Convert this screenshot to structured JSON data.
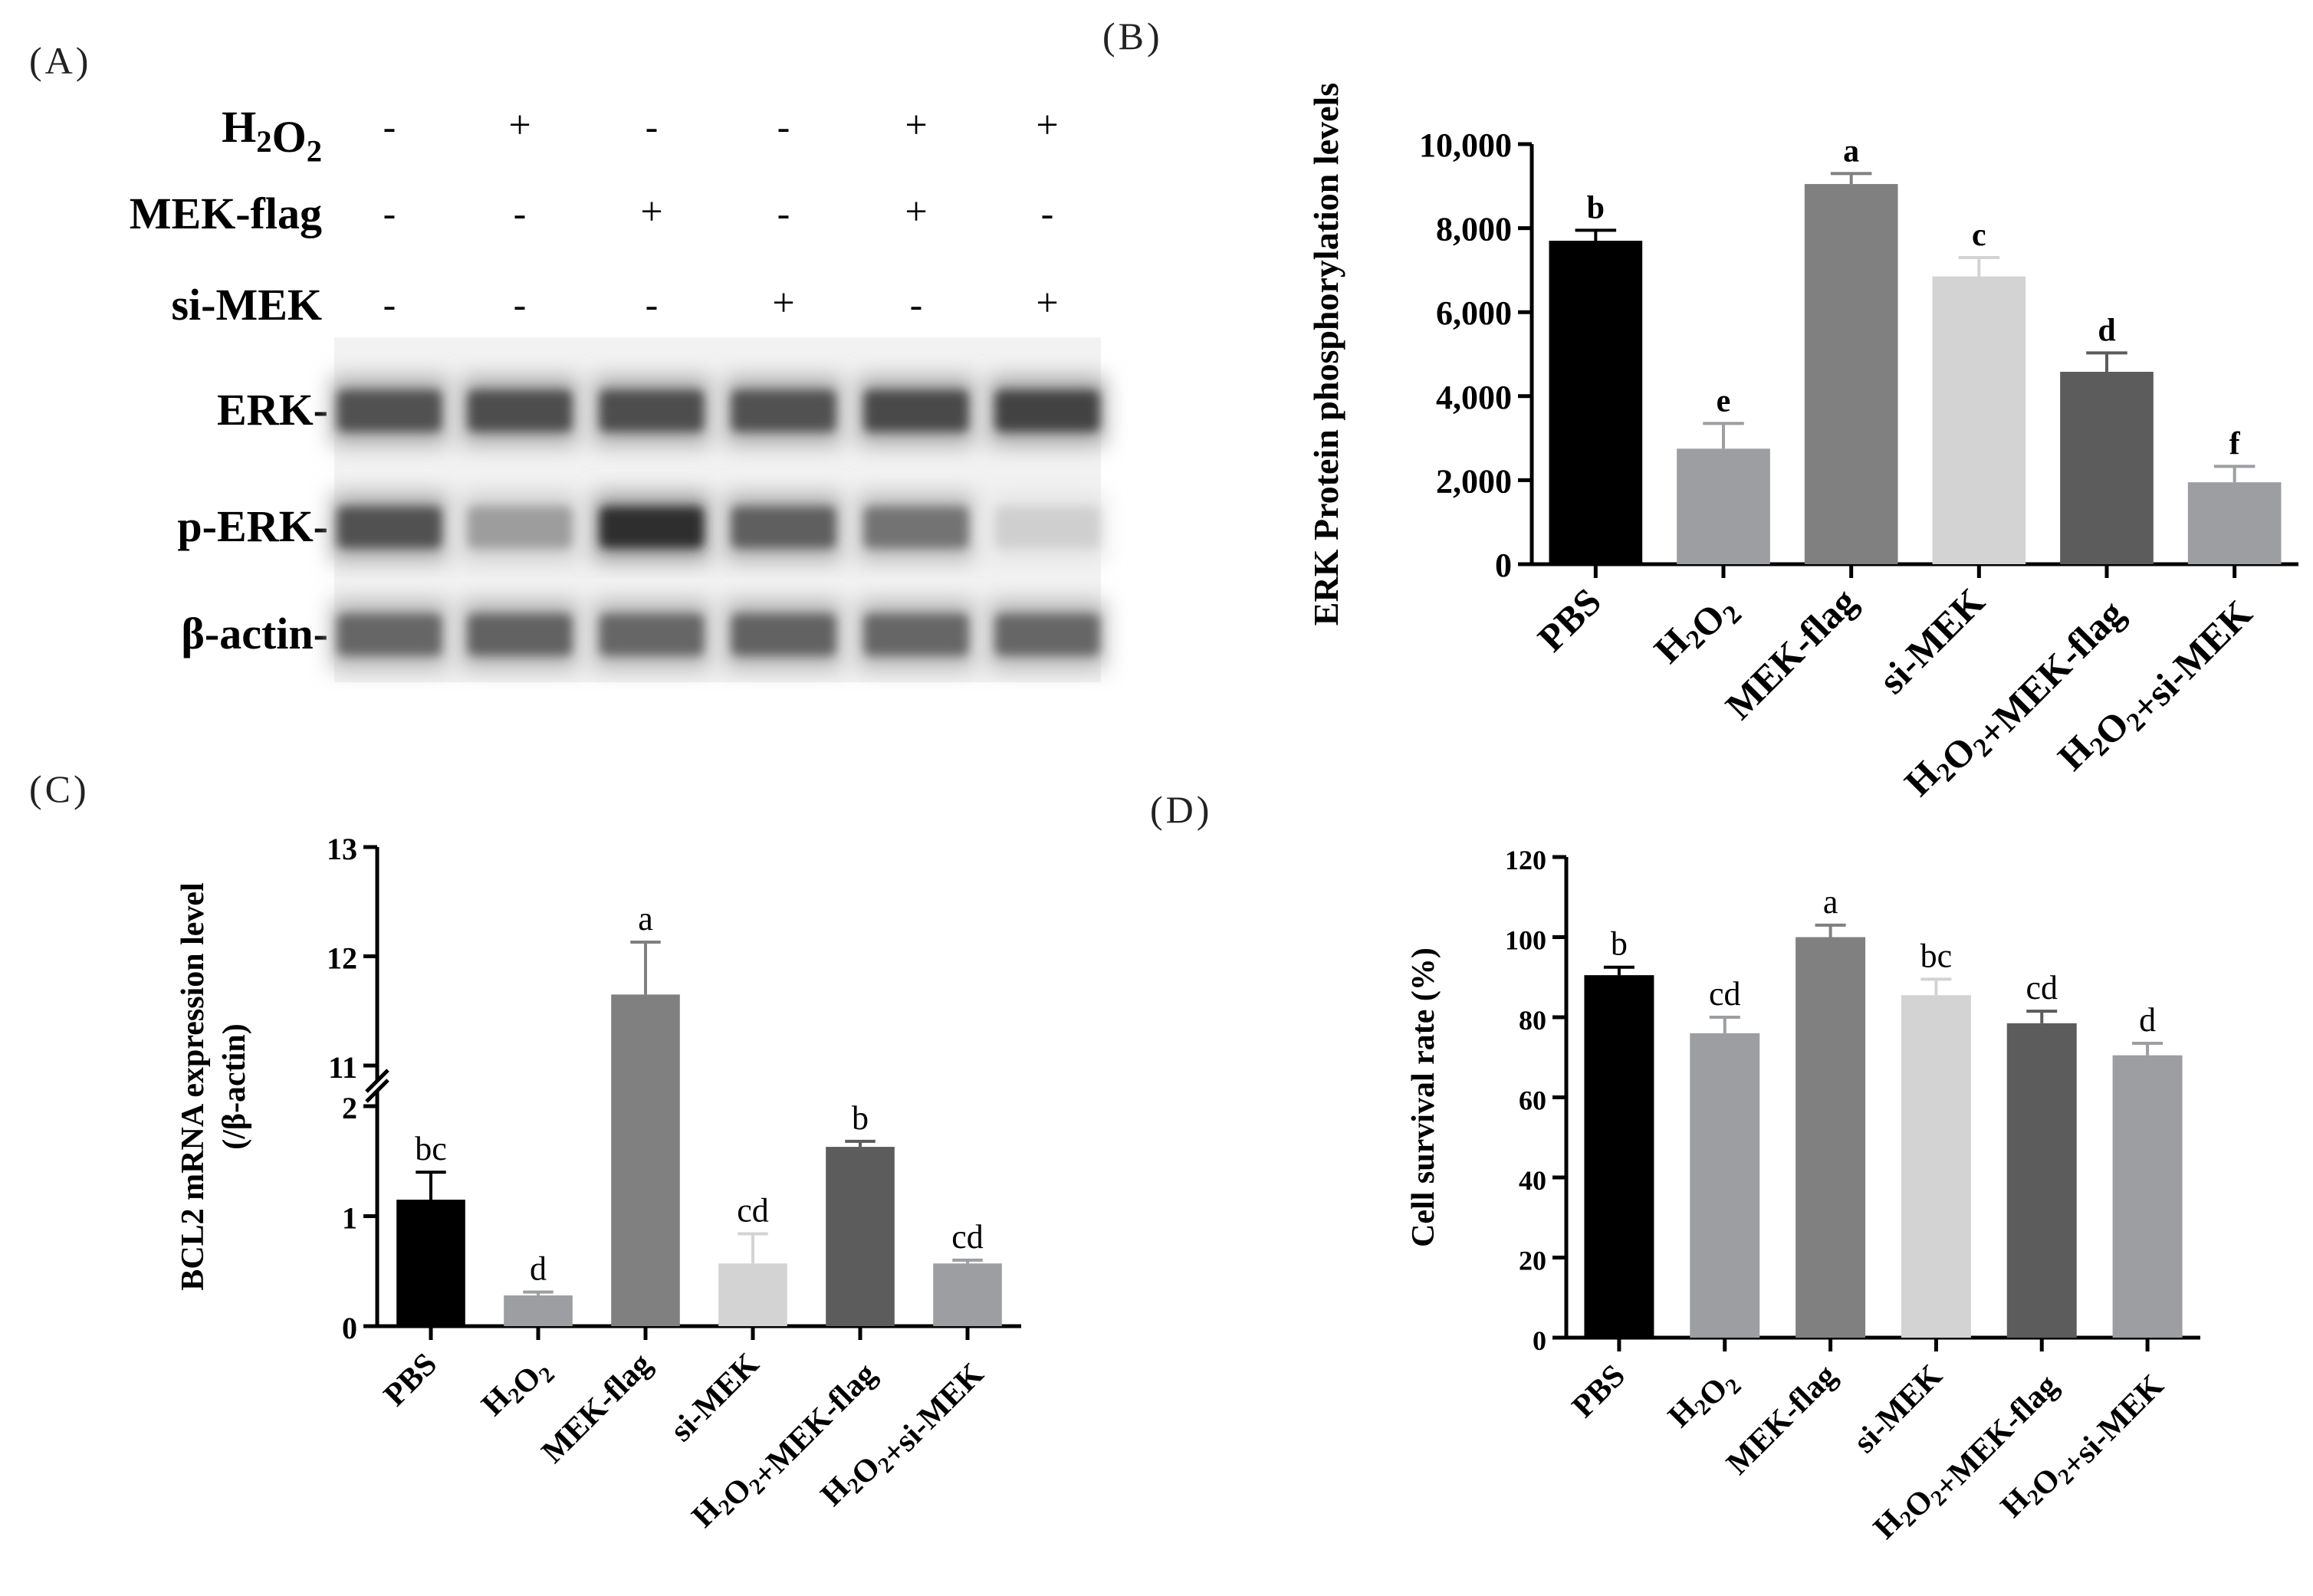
{
  "panel_labels": {
    "A": "(A)",
    "B": "(B)",
    "C": "(C)",
    "D": "(D)"
  },
  "western_blot": {
    "conditions": [
      {
        "name": "H2O2",
        "signs": [
          "-",
          "+",
          "-",
          "-",
          "+",
          "+"
        ]
      },
      {
        "name": "MEK-flag",
        "signs": [
          "-",
          "-",
          "+",
          "-",
          "+",
          "-"
        ]
      },
      {
        "name": "si-MEK",
        "signs": [
          "-",
          "-",
          "-",
          "+",
          "-",
          "+"
        ]
      }
    ],
    "bands": [
      {
        "name": "ERK-",
        "intensity": [
          0.78,
          0.8,
          0.8,
          0.78,
          0.82,
          0.85
        ]
      },
      {
        "name": "p-ERK-",
        "intensity": [
          0.78,
          0.42,
          0.95,
          0.72,
          0.62,
          0.18
        ]
      },
      {
        "name": "β-actin-",
        "intensity": [
          0.68,
          0.7,
          0.68,
          0.7,
          0.68,
          0.68
        ]
      }
    ]
  },
  "chart_data": [
    {
      "id": "B",
      "type": "bar",
      "title": "",
      "categories": [
        "PBS",
        "H2O2",
        "MEK-flag",
        "si-MEK",
        "H2O2+MEK-flag",
        "H2O2+si-MEK"
      ],
      "values": [
        7700,
        2750,
        9050,
        6850,
        4580,
        1950
      ],
      "errors": [
        250,
        600,
        250,
        450,
        450,
        380
      ],
      "letters": [
        "b",
        "e",
        "a",
        "c",
        "d",
        "f"
      ],
      "colors": [
        "#000000",
        "#9d9ea2",
        "#808080",
        "#d3d3d3",
        "#5c5c5c",
        "#9d9ea2"
      ],
      "ylabel": "ERK Protein phosphorylation levels",
      "xlabel": "",
      "ylim": [
        0,
        10000
      ],
      "yticks": [
        0,
        2000,
        4000,
        6000,
        8000,
        10000
      ],
      "ytick_labels": [
        "0",
        "2,000",
        "4,000",
        "6,000",
        "8,000",
        "10,000"
      ]
    },
    {
      "id": "C",
      "type": "bar",
      "title": "",
      "categories": [
        "PBS",
        "H2O2",
        "MEK-flag",
        "si-MEK",
        "H2O2+MEK-flag",
        "H2O2+si-MEK"
      ],
      "values": [
        1.15,
        0.28,
        11.65,
        0.57,
        1.63,
        0.57
      ],
      "errors": [
        0.25,
        0.03,
        0.48,
        0.27,
        0.05,
        0.03
      ],
      "letters": [
        "bc",
        "d",
        "a",
        "cd",
        "b",
        "cd"
      ],
      "colors": [
        "#000000",
        "#9d9ea2",
        "#808080",
        "#d3d3d3",
        "#5c5c5c",
        "#9d9ea2"
      ],
      "ylabel": "BCL2 mRNA expression level",
      "ylabel2": "(/β-actin)",
      "xlabel": "",
      "axis_break": [
        2,
        11
      ],
      "ylim": [
        0,
        13
      ],
      "yticks": [
        0,
        1,
        2,
        11,
        12,
        13
      ],
      "ytick_labels": [
        "0",
        "1",
        "2",
        "11",
        "12",
        "13"
      ]
    },
    {
      "id": "D",
      "type": "bar",
      "title": "",
      "categories": [
        "PBS",
        "H2O2",
        "MEK-flag",
        "si-MEK",
        "H2O2+MEK-flag",
        "H2O2+si-MEK"
      ],
      "values": [
        90.5,
        76,
        100,
        85.5,
        78.5,
        70.5
      ],
      "errors": [
        2,
        4,
        3,
        4,
        3,
        3
      ],
      "letters": [
        "b",
        "cd",
        "a",
        "bc",
        "cd",
        "d"
      ],
      "colors": [
        "#000000",
        "#9d9ea2",
        "#808080",
        "#d3d3d3",
        "#5c5c5c",
        "#9d9ea2"
      ],
      "ylabel": "Cell survival rate (%)",
      "xlabel": "",
      "ylim": [
        0,
        120
      ],
      "yticks": [
        0,
        20,
        40,
        60,
        80,
        100,
        120
      ],
      "ytick_labels": [
        "0",
        "20",
        "40",
        "60",
        "80",
        "100",
        "120"
      ]
    }
  ]
}
